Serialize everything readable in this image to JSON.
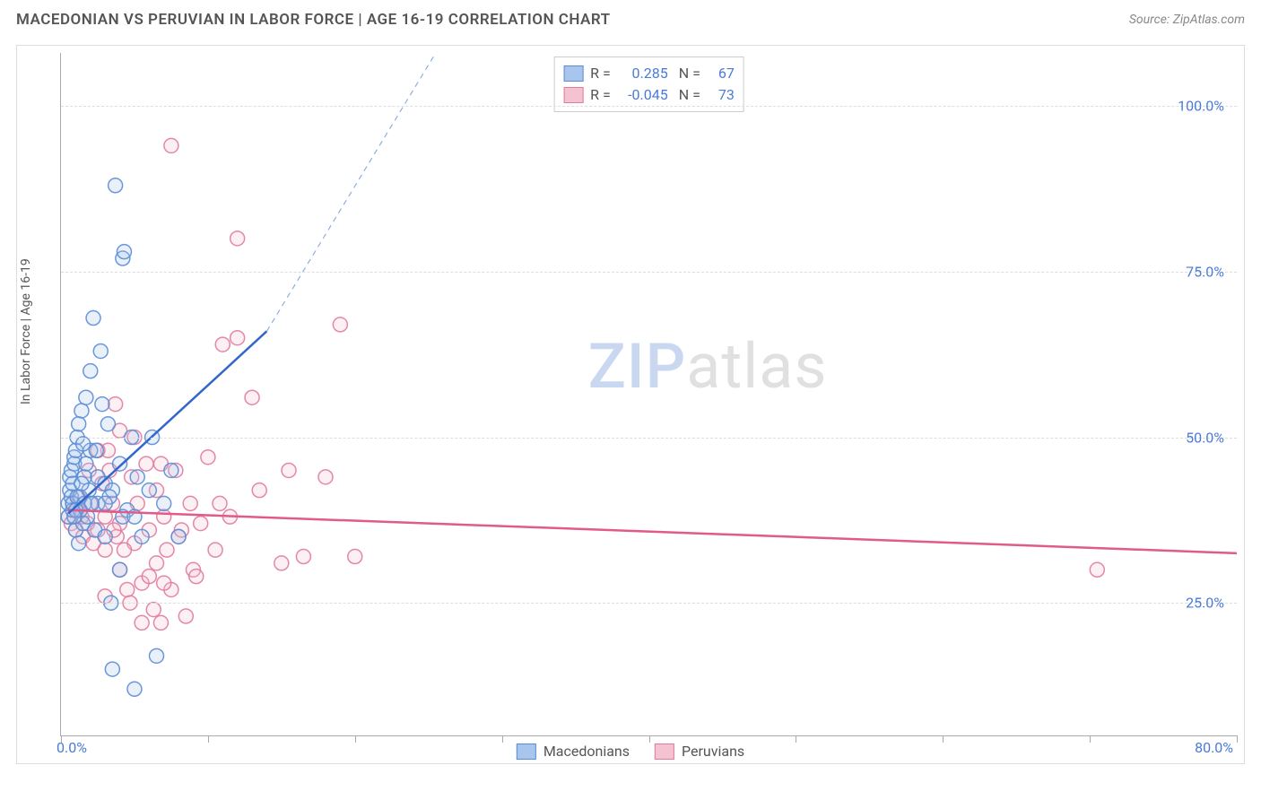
{
  "header": {
    "title": "MACEDONIAN VS PERUVIAN IN LABOR FORCE | AGE 16-19 CORRELATION CHART",
    "source": "Source: ZipAtlas.com"
  },
  "chart": {
    "type": "scatter",
    "ylabel": "In Labor Force | Age 16-19",
    "xlim": [
      0,
      80
    ],
    "ylim": [
      5,
      108
    ],
    "x_ticks": [
      0,
      10,
      20,
      30,
      40,
      50,
      60,
      70,
      80
    ],
    "x_tick_labels": {
      "0": "0.0%",
      "80": "80.0%"
    },
    "y_gridlines": [
      25,
      50,
      75,
      100
    ],
    "y_tick_labels": {
      "25": "25.0%",
      "50": "50.0%",
      "75": "75.0%",
      "100": "100.0%"
    },
    "background_color": "#ffffff",
    "grid_color": "#dddddd",
    "axis_color": "#aaaaaa",
    "tick_label_color": "#4a7bd8",
    "marker_radius": 8,
    "marker_opacity": 0.25,
    "marker_stroke_opacity": 0.9,
    "series": [
      {
        "name": "Macedonians",
        "color_fill": "#a8c5ed",
        "color_stroke": "#5a8dd6",
        "R": "0.285",
        "N": "67",
        "trend": {
          "x1": 0.5,
          "y1": 38.5,
          "x2": 14,
          "y2": 66,
          "color": "#3366cc",
          "width": 2.5
        },
        "trend_ext": {
          "x1": 14,
          "y1": 66,
          "x2": 25.5,
          "y2": 108,
          "dash": "6,5",
          "color": "#8dafe2",
          "width": 1.2
        },
        "points": [
          [
            0.5,
            38
          ],
          [
            0.5,
            40
          ],
          [
            0.6,
            42
          ],
          [
            0.6,
            44
          ],
          [
            0.7,
            45
          ],
          [
            0.7,
            41
          ],
          [
            0.8,
            39
          ],
          [
            0.8,
            43
          ],
          [
            0.9,
            46
          ],
          [
            0.9,
            47
          ],
          [
            1.0,
            48
          ],
          [
            1.0,
            36
          ],
          [
            1.1,
            50
          ],
          [
            1.2,
            52
          ],
          [
            1.2,
            34
          ],
          [
            1.3,
            41
          ],
          [
            1.4,
            54
          ],
          [
            1.5,
            37
          ],
          [
            1.6,
            44
          ],
          [
            1.7,
            56
          ],
          [
            1.8,
            38
          ],
          [
            2.0,
            48
          ],
          [
            2.0,
            60
          ],
          [
            2.2,
            68
          ],
          [
            2.3,
            36
          ],
          [
            2.5,
            40
          ],
          [
            2.5,
            44
          ],
          [
            2.7,
            63
          ],
          [
            3.0,
            43
          ],
          [
            3.0,
            35
          ],
          [
            3.2,
            52
          ],
          [
            3.4,
            25
          ],
          [
            3.5,
            15
          ],
          [
            3.5,
            42
          ],
          [
            3.7,
            88
          ],
          [
            4.0,
            46
          ],
          [
            4.0,
            30
          ],
          [
            4.2,
            77
          ],
          [
            4.3,
            78
          ],
          [
            4.5,
            39
          ],
          [
            4.8,
            50
          ],
          [
            5.0,
            12
          ],
          [
            5.2,
            44
          ],
          [
            5.5,
            35
          ],
          [
            6.0,
            42
          ],
          [
            6.2,
            50
          ],
          [
            6.5,
            17
          ],
          [
            7.0,
            40
          ],
          [
            7.5,
            45
          ],
          [
            8.0,
            35
          ],
          [
            2.8,
            55
          ],
          [
            1.9,
            42
          ],
          [
            1.3,
            39
          ],
          [
            0.8,
            40
          ],
          [
            1.1,
            41
          ],
          [
            1.4,
            43
          ],
          [
            1.6,
            40
          ],
          [
            3.3,
            41
          ],
          [
            4.2,
            38
          ],
          [
            2.1,
            40
          ],
          [
            1.0,
            39
          ],
          [
            0.9,
            38
          ],
          [
            1.7,
            46
          ],
          [
            2.4,
            48
          ],
          [
            3.0,
            40
          ],
          [
            5.0,
            38
          ],
          [
            1.5,
            49
          ]
        ]
      },
      {
        "name": "Peruvians",
        "color_fill": "#f4c2d0",
        "color_stroke": "#e17a9e",
        "R": "-0.045",
        "N": "73",
        "trend": {
          "x1": 0.5,
          "y1": 39,
          "x2": 80,
          "y2": 32.5,
          "color": "#e05a8a",
          "width": 2.5
        },
        "points": [
          [
            0.5,
            38
          ],
          [
            0.7,
            37
          ],
          [
            0.8,
            40
          ],
          [
            1.0,
            36
          ],
          [
            1.1,
            39
          ],
          [
            1.2,
            41
          ],
          [
            1.4,
            38
          ],
          [
            1.5,
            35
          ],
          [
            1.8,
            37
          ],
          [
            2.0,
            40
          ],
          [
            2.2,
            34
          ],
          [
            2.5,
            36
          ],
          [
            2.8,
            43
          ],
          [
            3.0,
            38
          ],
          [
            3.0,
            33
          ],
          [
            3.3,
            45
          ],
          [
            3.5,
            40
          ],
          [
            3.8,
            35
          ],
          [
            4.0,
            30
          ],
          [
            4.0,
            37
          ],
          [
            4.5,
            27
          ],
          [
            4.8,
            44
          ],
          [
            5.0,
            34
          ],
          [
            5.2,
            40
          ],
          [
            5.5,
            28
          ],
          [
            5.8,
            46
          ],
          [
            6.0,
            36
          ],
          [
            6.0,
            29
          ],
          [
            6.3,
            24
          ],
          [
            6.5,
            42
          ],
          [
            6.8,
            22
          ],
          [
            7.0,
            38
          ],
          [
            7.2,
            33
          ],
          [
            7.5,
            27
          ],
          [
            7.8,
            45
          ],
          [
            8.0,
            35
          ],
          [
            8.5,
            23
          ],
          [
            8.8,
            40
          ],
          [
            9.0,
            30
          ],
          [
            9.5,
            37
          ],
          [
            10.0,
            47
          ],
          [
            10.5,
            33
          ],
          [
            11.0,
            64
          ],
          [
            11.5,
            38
          ],
          [
            12.0,
            80
          ],
          [
            12.0,
            65
          ],
          [
            13.0,
            56
          ],
          [
            13.5,
            42
          ],
          [
            15.0,
            31
          ],
          [
            15.5,
            45
          ],
          [
            16.5,
            32
          ],
          [
            18.0,
            44
          ],
          [
            19.0,
            67
          ],
          [
            20.0,
            32
          ],
          [
            7.5,
            94
          ],
          [
            3.2,
            48
          ],
          [
            4.0,
            51
          ],
          [
            1.9,
            45
          ],
          [
            2.5,
            48
          ],
          [
            3.7,
            55
          ],
          [
            5.0,
            50
          ],
          [
            4.3,
            33
          ],
          [
            3.6,
            36
          ],
          [
            6.5,
            31
          ],
          [
            7.0,
            28
          ],
          [
            8.2,
            36
          ],
          [
            9.2,
            29
          ],
          [
            10.8,
            40
          ],
          [
            6.8,
            46
          ],
          [
            4.7,
            25
          ],
          [
            5.5,
            22
          ],
          [
            3.0,
            26
          ],
          [
            70.5,
            30
          ]
        ]
      }
    ],
    "legend_bottom": [
      {
        "label": "Macedonians",
        "fill": "#a8c5ed",
        "stroke": "#5a8dd6"
      },
      {
        "label": "Peruvians",
        "fill": "#f4c2d0",
        "stroke": "#e17a9e"
      }
    ],
    "watermark": {
      "part1": "ZIP",
      "part2": "atlas"
    }
  }
}
